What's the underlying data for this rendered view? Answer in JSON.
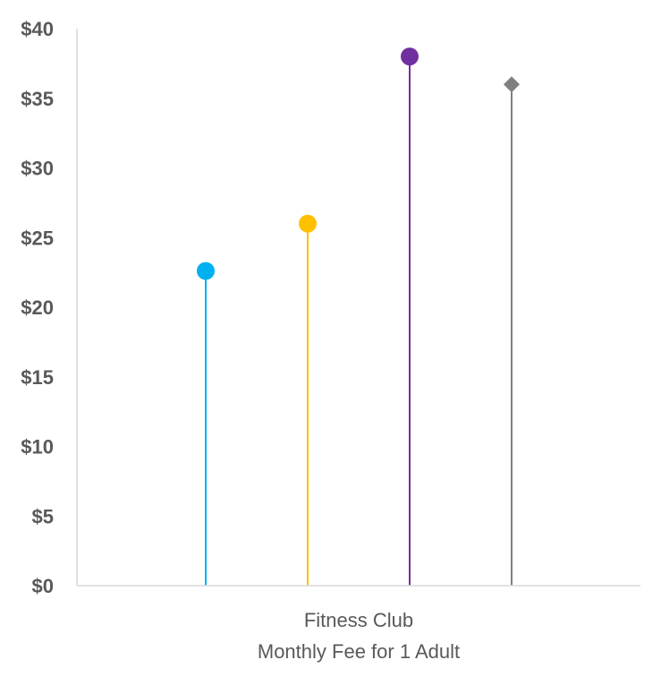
{
  "chart_data": {
    "type": "lollipop",
    "categories": [
      "Fitness Club"
    ],
    "series": [
      {
        "values": [
          22.6
        ],
        "color": "#00B0F0",
        "marker": "circle"
      },
      {
        "values": [
          26.0
        ],
        "color": "#FFC000",
        "marker": "circle"
      },
      {
        "values": [
          38.0
        ],
        "color": "#7030A0",
        "marker": "circle"
      },
      {
        "values": [
          36.0
        ],
        "color": "#808080",
        "marker": "diamond"
      }
    ],
    "title": "",
    "xlabel": [
      "Fitness Club",
      "Monthly Fee for 1 Adult"
    ],
    "ylabel": "",
    "ylim": [
      0,
      40
    ],
    "y_ticks": [
      {
        "value": 0,
        "label": "$0"
      },
      {
        "value": 5,
        "label": "$5"
      },
      {
        "value": 10,
        "label": "$10"
      },
      {
        "value": 15,
        "label": "$15"
      },
      {
        "value": 20,
        "label": "$20"
      },
      {
        "value": 25,
        "label": "$25"
      },
      {
        "value": 30,
        "label": "$30"
      },
      {
        "value": 35,
        "label": "$35"
      },
      {
        "value": 40,
        "label": "$40"
      }
    ],
    "grid": false,
    "legend": "none",
    "axis_color": "#D9D9D9",
    "text_color": "#595959"
  }
}
